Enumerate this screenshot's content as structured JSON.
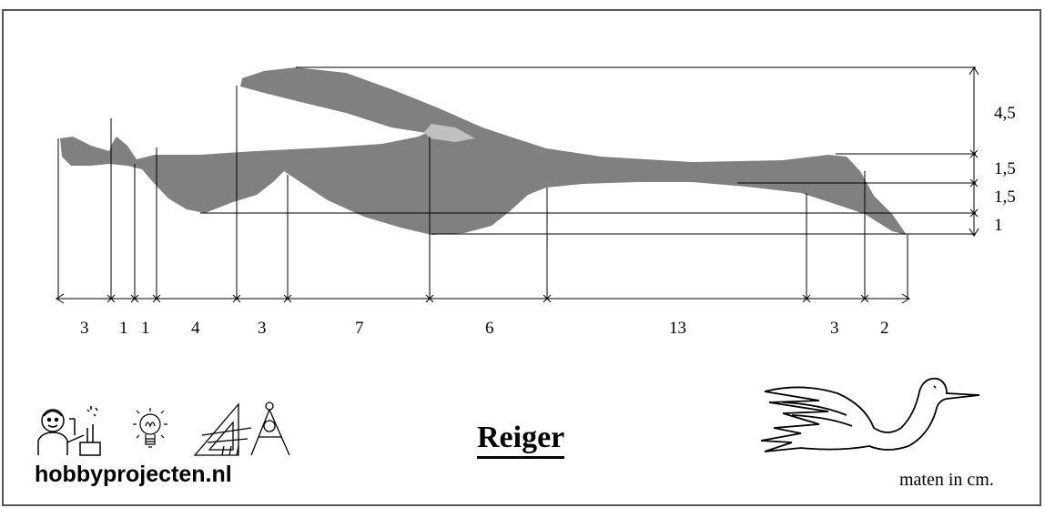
{
  "title": "Reiger",
  "brand": "hobbyprojecten.nl",
  "units_note": "maten in cm.",
  "horizontal_dimensions": [
    "3",
    "1",
    "1",
    "4",
    "3",
    "7",
    "6",
    "13",
    "3",
    "2"
  ],
  "vertical_dimensions": [
    "4,5",
    "1,5",
    "1,5",
    "1"
  ],
  "colors": {
    "body": "#808080",
    "highlight": "#c0c0c0",
    "line": "#000000",
    "border": "#555555"
  },
  "icons": [
    "scientist-icon",
    "lightbulb-icon",
    "drafting-tools-icon",
    "flying-heron-icon"
  ]
}
